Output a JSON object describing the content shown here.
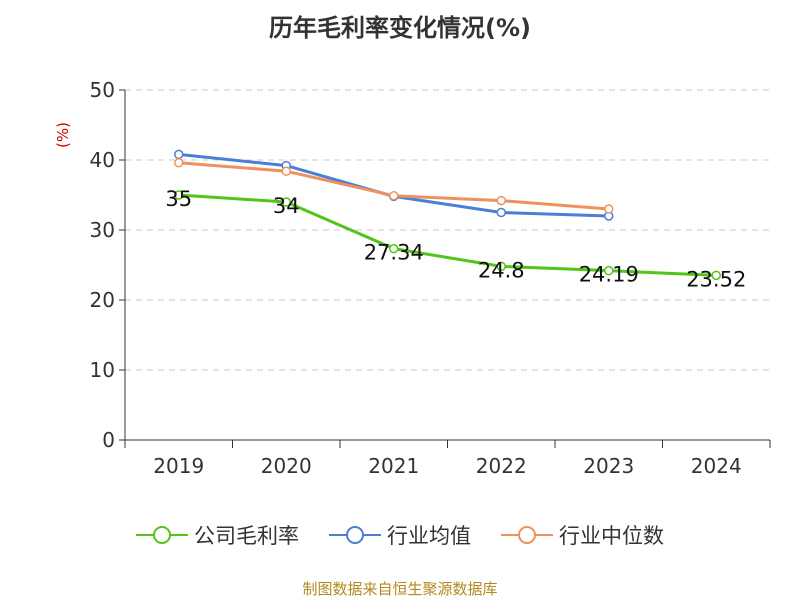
{
  "chart_data": {
    "type": "line",
    "title": "历年毛利率变化情况(%)",
    "ylabel": "(%)",
    "categories": [
      "2019",
      "2020",
      "2021",
      "2022",
      "2023",
      "2024"
    ],
    "ylim": [
      0,
      50
    ],
    "yticks": [
      0,
      10,
      20,
      30,
      40,
      50
    ],
    "grid": true,
    "legend_position": "bottom",
    "series": [
      {
        "name": "公司毛利率",
        "color": "#52c41a",
        "values": [
          35,
          34,
          27.34,
          24.8,
          24.19,
          23.52
        ],
        "labels": [
          "35",
          "34",
          "27.34",
          "24.8",
          "24.19",
          "23.52"
        ]
      },
      {
        "name": "行业均值",
        "color": "#4a7fd8",
        "values": [
          40.8,
          39.2,
          34.8,
          32.5,
          32.0,
          null
        ]
      },
      {
        "name": "行业中位数",
        "color": "#f0905c",
        "values": [
          39.6,
          38.4,
          34.9,
          34.2,
          33.0,
          null
        ]
      }
    ]
  },
  "footer": {
    "source": "制图数据来自恒生聚源数据库"
  }
}
